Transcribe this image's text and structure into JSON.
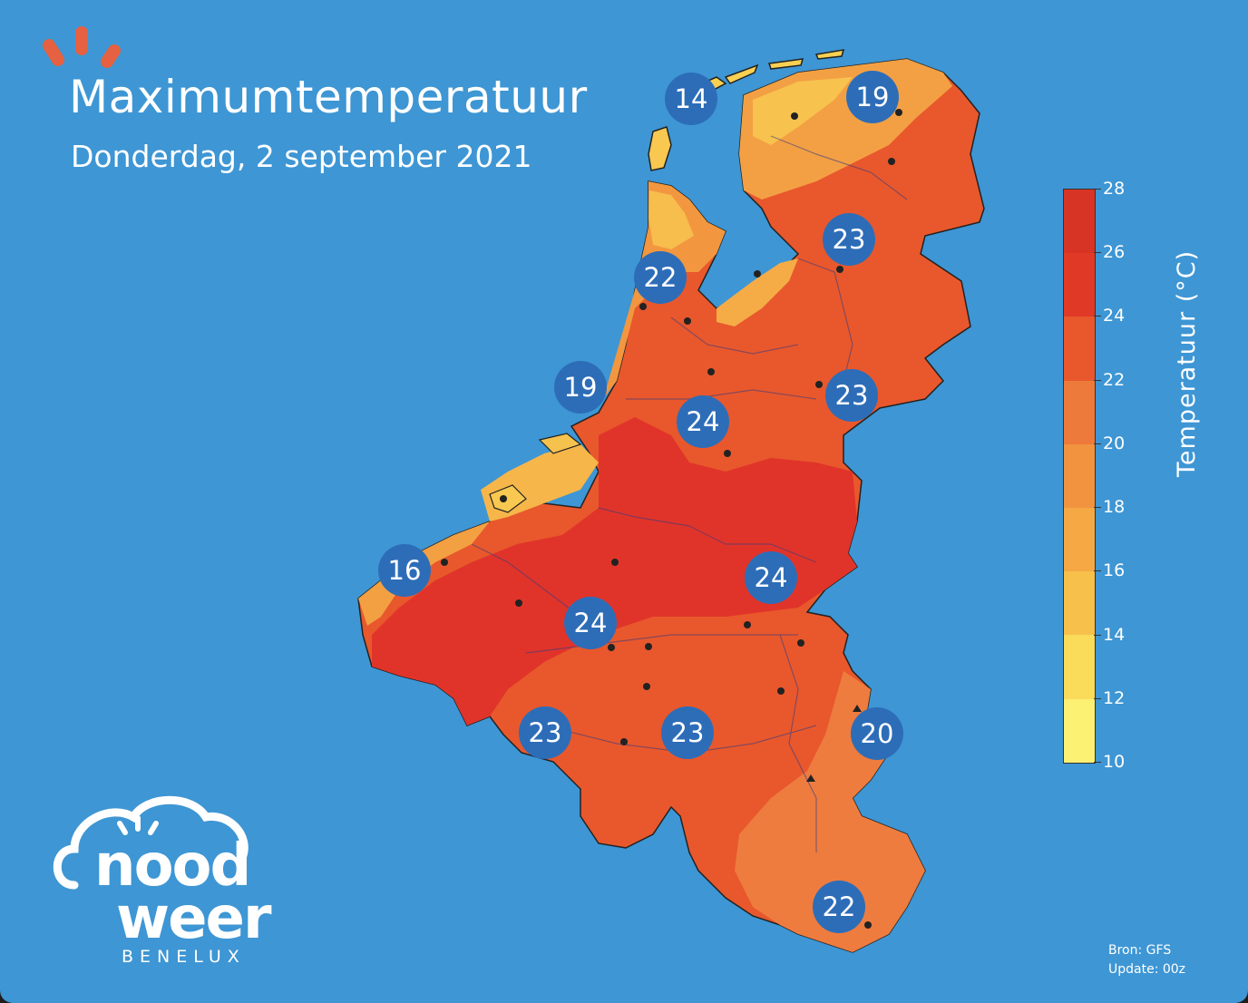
{
  "header": {
    "title": "Maximumtemperatuur",
    "subtitle": "Donderdag, 2 september 2021"
  },
  "colors": {
    "sea": "#3e96d4",
    "bubble": "#2d6db8",
    "logo_accent": "#e56141"
  },
  "map_labels": [
    {
      "name": "label-texel-north",
      "value": "14"
    },
    {
      "name": "label-groningen",
      "value": "19"
    },
    {
      "name": "label-drenthe",
      "value": "23"
    },
    {
      "name": "label-noord-holland",
      "value": "22"
    },
    {
      "name": "label-zuid-holland",
      "value": "19"
    },
    {
      "name": "label-utrecht",
      "value": "24"
    },
    {
      "name": "label-gelderland",
      "value": "23"
    },
    {
      "name": "label-flanders-coast",
      "value": "16"
    },
    {
      "name": "label-limburg",
      "value": "24"
    },
    {
      "name": "label-flanders",
      "value": "24"
    },
    {
      "name": "label-hainaut",
      "value": "23"
    },
    {
      "name": "label-namur",
      "value": "23"
    },
    {
      "name": "label-ardennes",
      "value": "20"
    },
    {
      "name": "label-luxembourg",
      "value": "22"
    }
  ],
  "colorbar": {
    "title": "Temperatuur (°C)",
    "ticks": [
      "28",
      "26",
      "24",
      "22",
      "20",
      "18",
      "16",
      "14",
      "12",
      "10"
    ],
    "colors": [
      "#d73425",
      "#e44528",
      "#e8532d",
      "#ed7a3a",
      "#f29340",
      "#f5a844",
      "#f7c04b",
      "#fadb5a",
      "#fcf173"
    ]
  },
  "logo": {
    "line1": "nood",
    "line2": "weer",
    "line3": "BENELUX"
  },
  "source": {
    "bron": "Bron: GFS",
    "update": "Update: 00z"
  }
}
